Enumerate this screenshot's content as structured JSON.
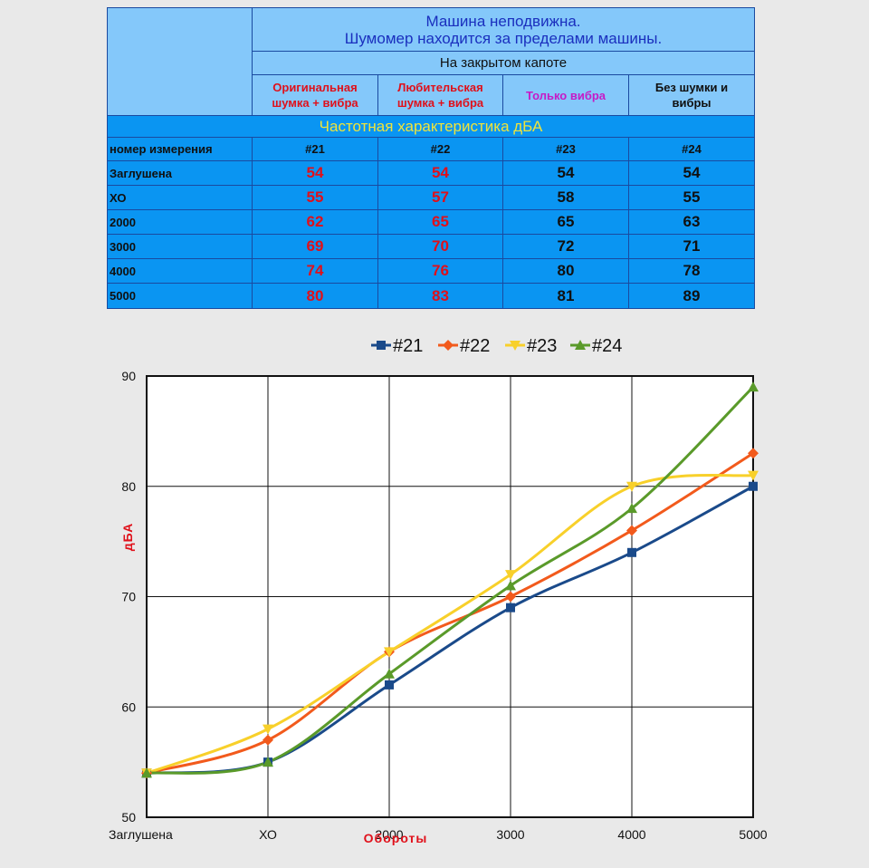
{
  "table": {
    "title_line1": "Машина неподвижна.",
    "title_line2": "Шумомер находится за пределами машины.",
    "subtitle": "На закрытом капоте",
    "col_headers": [
      {
        "line1": "Оригинальная",
        "line2": "шумка + вибра"
      },
      {
        "line1": "Любительская",
        "line2": "шумка + вибра"
      },
      {
        "line1": "Только вибра",
        "line2": ""
      },
      {
        "line1": "Без шумки и",
        "line2": "вибры"
      }
    ],
    "band_title": "Частотная характеристика дБА",
    "number_row_label": "номер измерения",
    "numbers": [
      "#21",
      "#22",
      "#23",
      "#24"
    ],
    "rows": [
      {
        "label": "Заглушена",
        "values": [
          54,
          54,
          54,
          54
        ]
      },
      {
        "label": "ХО",
        "values": [
          55,
          57,
          58,
          55
        ]
      },
      {
        "label": "2000",
        "values": [
          62,
          65,
          65,
          63
        ]
      },
      {
        "label": "3000",
        "values": [
          69,
          70,
          72,
          71
        ]
      },
      {
        "label": "4000",
        "values": [
          74,
          76,
          80,
          78
        ]
      },
      {
        "label": "5000",
        "values": [
          80,
          83,
          81,
          89
        ]
      }
    ]
  },
  "chart_data": {
    "type": "line",
    "title": "",
    "xlabel": "Обороты",
    "ylabel": "дБА",
    "categories": [
      "Заглушена",
      "ХО",
      "2000",
      "3000",
      "4000",
      "5000"
    ],
    "ylim": [
      50,
      90
    ],
    "yticks": [
      50,
      60,
      70,
      80,
      90
    ],
    "grid": true,
    "legend_position": "top",
    "smooth": true,
    "series": [
      {
        "name": "#21",
        "color": "#1a4a8a",
        "marker": "square",
        "values": [
          54,
          55,
          62,
          69,
          74,
          80
        ]
      },
      {
        "name": "#22",
        "color": "#f25a1c",
        "marker": "diamond",
        "values": [
          54,
          57,
          65,
          70,
          76,
          83
        ]
      },
      {
        "name": "#23",
        "color": "#f8d02a",
        "marker": "triangle-down",
        "values": [
          54,
          58,
          65,
          72,
          80,
          81
        ]
      },
      {
        "name": "#24",
        "color": "#5a9a2a",
        "marker": "triangle-up",
        "values": [
          54,
          55,
          63,
          71,
          78,
          89
        ]
      }
    ]
  }
}
